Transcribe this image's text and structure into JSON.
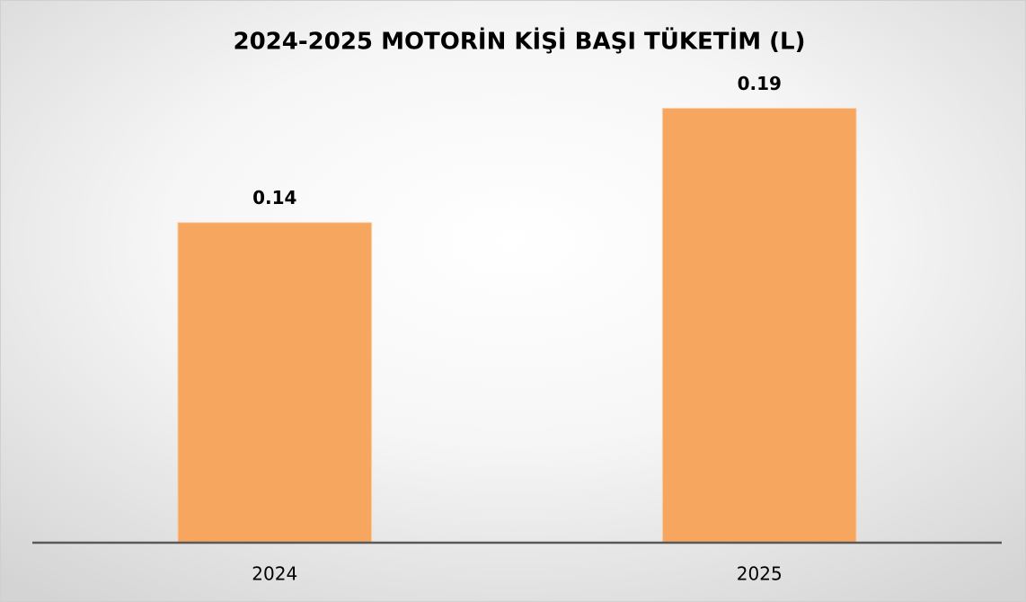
{
  "chart_data": {
    "type": "bar",
    "title": "2024-2025 MOTORİN KİŞİ BAŞI TÜKETİM (L)",
    "categories": [
      "2024",
      "2025"
    ],
    "values": [
      0.14,
      0.19
    ],
    "color": "#f7a660",
    "ylim": [
      0,
      0.2
    ]
  }
}
